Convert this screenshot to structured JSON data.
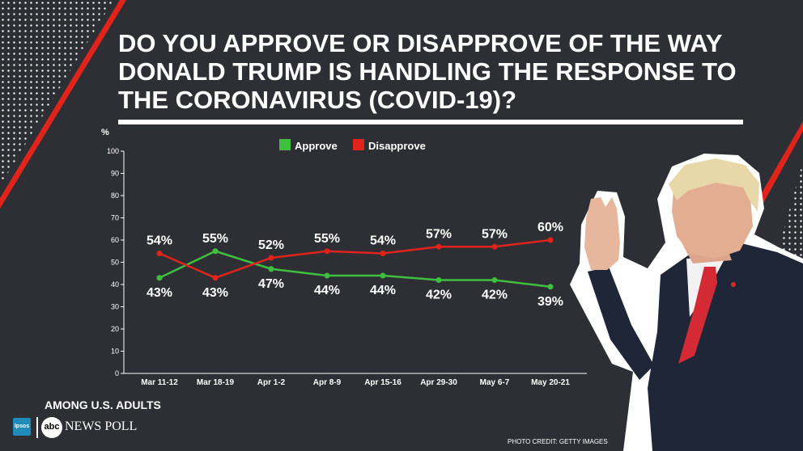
{
  "title_lines": [
    "DO YOU APPROVE OR DISAPPROVE OF THE WAY",
    "DONALD TRUMP IS HANDLING THE RESPONSE TO",
    "THE CORONAVIRUS (COVID-19)?"
  ],
  "chart_data": {
    "type": "line",
    "ylabel": "%",
    "ylim": [
      0,
      100
    ],
    "yticks": [
      0,
      10,
      20,
      30,
      40,
      50,
      60,
      70,
      80,
      90,
      100
    ],
    "categories": [
      "Mar 11-12",
      "Mar 18-19",
      "Apr 1-2",
      "Apr 8-9",
      "Apr 15-16",
      "Apr 29-30",
      "May 6-7",
      "May 20-21"
    ],
    "series": [
      {
        "name": "Approve",
        "color": "#3fbf3f",
        "values": [
          43,
          55,
          47,
          44,
          44,
          42,
          42,
          39
        ],
        "labels": [
          "43%",
          "55%",
          "47%",
          "44%",
          "44%",
          "42%",
          "42%",
          "39%"
        ]
      },
      {
        "name": "Disapprove",
        "color": "#e0241b",
        "values": [
          54,
          43,
          52,
          55,
          54,
          57,
          57,
          60
        ],
        "labels": [
          "54%",
          "43%",
          "52%",
          "55%",
          "54%",
          "57%",
          "57%",
          "60%"
        ]
      }
    ],
    "legend_position": "top-center",
    "grid": false
  },
  "footer": {
    "subtitle": "AMONG U.S. ADULTS",
    "partner_logo": "Ipsos",
    "network_logo": "abc",
    "poll_label": "NEWS POLL",
    "photo_credit": "PHOTO CREDIT: GETTY IMAGES"
  }
}
